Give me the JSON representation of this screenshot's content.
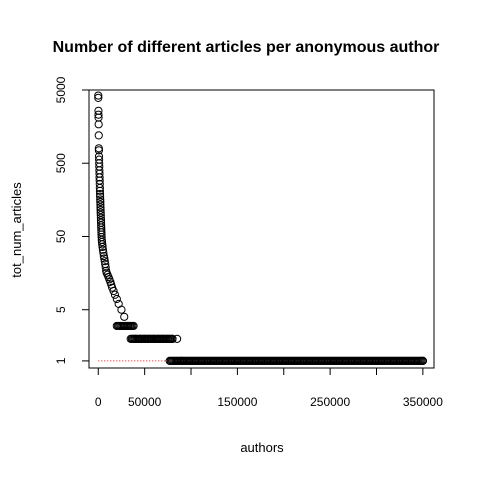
{
  "chart_data": {
    "type": "scatter",
    "title": "Number of different articles per anonymous author",
    "xlabel": "authors",
    "ylabel": "tot_num_articles",
    "y_scale": "log",
    "xlim": [
      -10000,
      362000
    ],
    "ylim": [
      0.8,
      5000
    ],
    "x_ticks": [
      0,
      50000,
      150000,
      250000,
      350000
    ],
    "x_tick_labels": [
      "0",
      "50000",
      "150000",
      "250000",
      "350000"
    ],
    "y_ticks": [
      1,
      5,
      50,
      500,
      5000
    ],
    "y_tick_labels": [
      "1",
      "5",
      "50",
      "500",
      "5000"
    ],
    "grid": false,
    "marker": "open-circle",
    "reference_line": {
      "y": 1,
      "x_range": [
        0,
        350000
      ],
      "color": "#ff0000",
      "style": "dotted"
    },
    "series": [
      {
        "points": [
          [
            0,
            4200
          ],
          [
            0,
            3900
          ],
          [
            200,
            2600
          ],
          [
            200,
            2300
          ],
          [
            300,
            2100
          ],
          [
            400,
            1700
          ],
          [
            500,
            1200
          ],
          [
            600,
            800
          ],
          [
            700,
            750
          ],
          [
            800,
            620
          ],
          [
            900,
            560
          ],
          [
            1000,
            500
          ],
          [
            1100,
            450
          ],
          [
            1200,
            400
          ],
          [
            1300,
            360
          ],
          [
            1400,
            320
          ],
          [
            1500,
            290
          ],
          [
            1600,
            260
          ],
          [
            1700,
            230
          ],
          [
            1800,
            210
          ],
          [
            1900,
            190
          ],
          [
            2000,
            175
          ],
          [
            2100,
            160
          ],
          [
            2200,
            148
          ],
          [
            2300,
            136
          ],
          [
            2400,
            125
          ],
          [
            2500,
            115
          ],
          [
            2600,
            106
          ],
          [
            2700,
            98
          ],
          [
            2800,
            90
          ],
          [
            2900,
            83
          ],
          [
            3000,
            77
          ],
          [
            3100,
            71
          ],
          [
            3200,
            66
          ],
          [
            3300,
            61
          ],
          [
            3400,
            57
          ],
          [
            3500,
            53
          ],
          [
            3600,
            49
          ],
          [
            3800,
            45
          ],
          [
            4000,
            42
          ],
          [
            4300,
            39
          ],
          [
            4600,
            36
          ],
          [
            5000,
            33
          ],
          [
            5500,
            30
          ],
          [
            6000,
            27
          ],
          [
            6500,
            25
          ],
          [
            7000,
            23
          ],
          [
            7500,
            21
          ],
          [
            8000,
            19
          ],
          [
            8500,
            17
          ],
          [
            9000,
            16
          ],
          [
            10000,
            15
          ],
          [
            11000,
            14
          ],
          [
            12000,
            13
          ],
          [
            13000,
            12
          ],
          [
            14000,
            11
          ],
          [
            15000,
            10
          ],
          [
            16500,
            9
          ],
          [
            18000,
            8
          ],
          [
            20000,
            7
          ],
          [
            22000,
            6
          ],
          [
            25000,
            5
          ],
          [
            28000,
            4
          ],
          [
            32000,
            3
          ],
          [
            40000,
            2
          ],
          [
            45000,
            2
          ],
          [
            50000,
            2
          ],
          [
            55000,
            2
          ],
          [
            60000,
            2
          ],
          [
            65000,
            2
          ],
          [
            70000,
            2
          ],
          [
            75000,
            2
          ],
          [
            80000,
            2
          ],
          [
            85000,
            2
          ],
          [
            90000,
            1
          ],
          [
            350000,
            1
          ]
        ],
        "dense_runs": [
          {
            "y": 3,
            "x_from": 20000,
            "x_to": 38000
          },
          {
            "y": 2,
            "x_from": 35000,
            "x_to": 80000
          },
          {
            "y": 1,
            "x_from": 77000,
            "x_to": 350000
          }
        ]
      }
    ]
  }
}
